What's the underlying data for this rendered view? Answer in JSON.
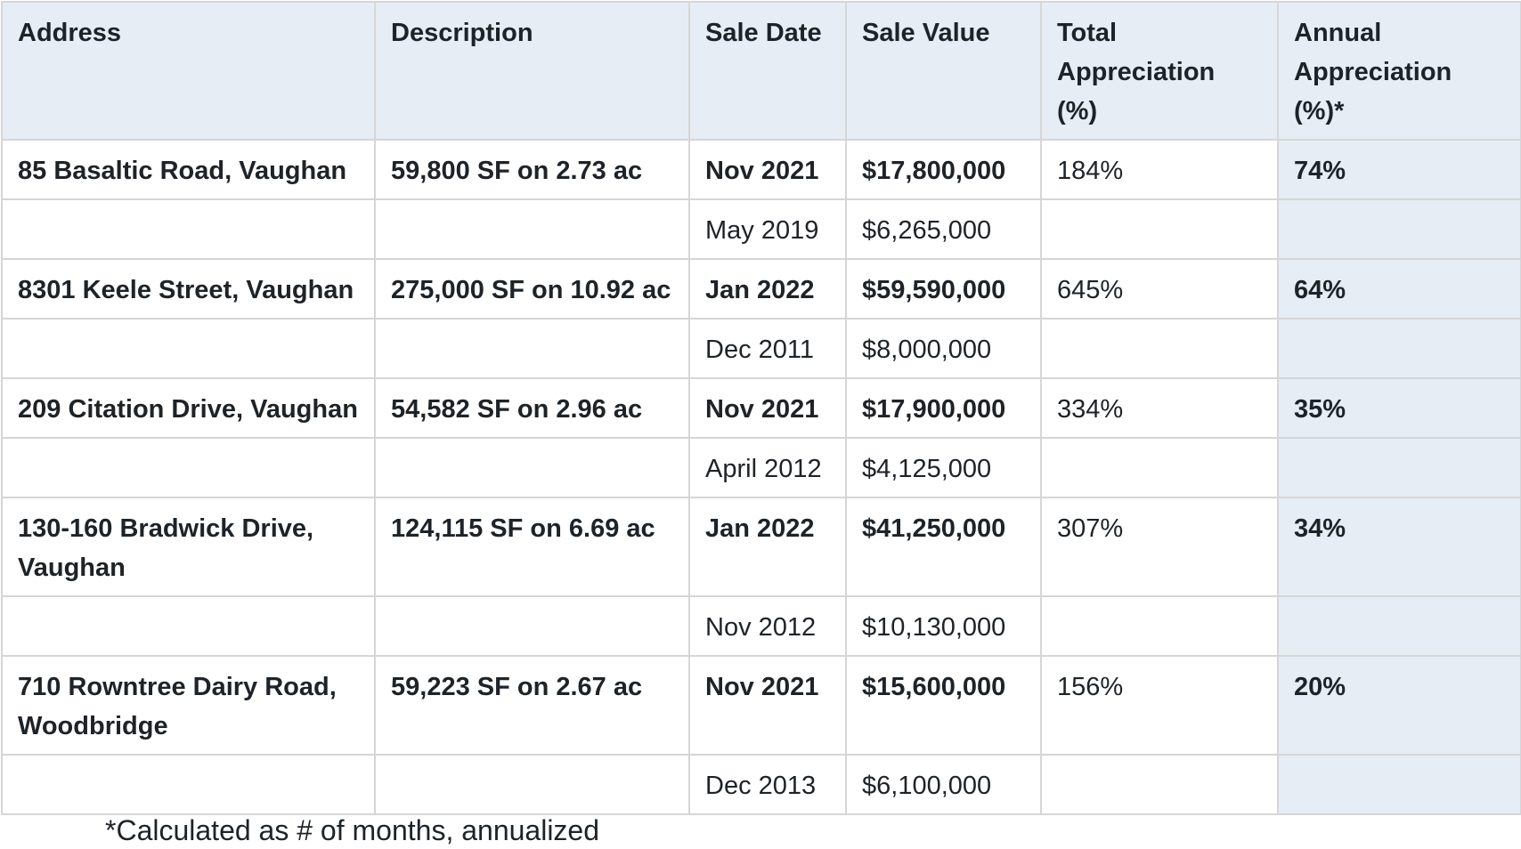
{
  "table": {
    "headers": [
      "Address",
      "Description",
      "Sale Date",
      "Sale Value",
      "Total Appreciation (%)",
      "Annual Appreciation (%)*"
    ],
    "rows": [
      {
        "address": "85 Basaltic Road, Vaughan",
        "description": "59,800 SF on 2.73 ac",
        "sale_date": "Nov 2021",
        "sale_value": "$17,800,000",
        "total_appreciation": "184%",
        "annual_appreciation": "74%",
        "prior_sale_date": "May 2019",
        "prior_sale_value": "$6,265,000"
      },
      {
        "address": "8301 Keele Street, Vaughan",
        "description": "275,000 SF on 10.92 ac",
        "sale_date": "Jan 2022",
        "sale_value": "$59,590,000",
        "total_appreciation": "645%",
        "annual_appreciation": "64%",
        "prior_sale_date": "Dec 2011",
        "prior_sale_value": "$8,000,000"
      },
      {
        "address": "209 Citation Drive, Vaughan",
        "description": "54,582 SF on 2.96 ac",
        "sale_date": "Nov 2021",
        "sale_value": "$17,900,000",
        "total_appreciation": "334%",
        "annual_appreciation": "35%",
        "prior_sale_date": "April 2012",
        "prior_sale_value": "$4,125,000"
      },
      {
        "address": "130-160 Bradwick Drive, Vaughan",
        "description": "124,115 SF on 6.69 ac",
        "sale_date": "Jan 2022",
        "sale_value": "$41,250,000",
        "total_appreciation": "307%",
        "annual_appreciation": "34%",
        "prior_sale_date": "Nov 2012",
        "prior_sale_value": "$10,130,000"
      },
      {
        "address": "710 Rowntree Dairy Road, Woodbridge",
        "description": "59,223 SF on 2.67 ac",
        "sale_date": "Nov 2021",
        "sale_value": "$15,600,000",
        "total_appreciation": "156%",
        "annual_appreciation": "20%",
        "prior_sale_date": "Dec 2013",
        "prior_sale_value": "$6,100,000"
      }
    ]
  },
  "footnote": "*Calculated as # of months, annualized",
  "colors": {
    "header_background": "#e6edf5",
    "annual_column_background": "#e6edf5",
    "border": "#d6d6d6",
    "text": "#1e2328"
  }
}
